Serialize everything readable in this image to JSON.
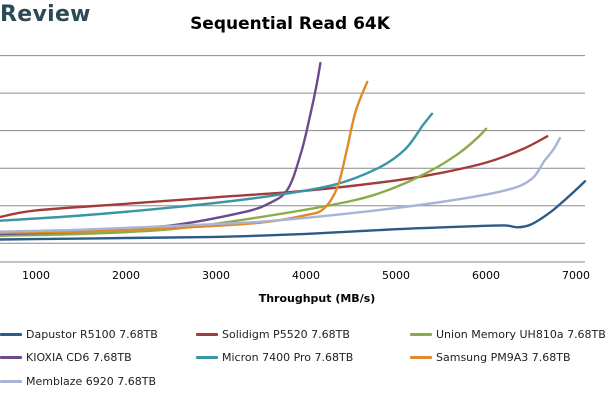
{
  "brand": "Review",
  "chart_data": {
    "type": "line",
    "title": "Sequential Read 64K",
    "xlabel": "Throughput (MB/s)",
    "ylabel": "",
    "xlim": [
      600,
      7100
    ],
    "ylim": [
      -1,
      10.3
    ],
    "x_ticks": [
      1000,
      2000,
      3000,
      4000,
      5000,
      6000,
      7000
    ],
    "y_ticks_hidden": true,
    "grid": "horizontal",
    "legend_position": "bottom",
    "series": [
      {
        "name": "Dapustor R5100 7.68TB",
        "color": "#2e5a88",
        "points": [
          [
            600,
            0.2
          ],
          [
            1000,
            0.22
          ],
          [
            2000,
            0.28
          ],
          [
            3000,
            0.34
          ],
          [
            4000,
            0.5
          ],
          [
            5000,
            0.75
          ],
          [
            5800,
            0.9
          ],
          [
            6200,
            0.95
          ],
          [
            6350,
            0.85
          ],
          [
            6500,
            1.0
          ],
          [
            6700,
            1.6
          ],
          [
            6850,
            2.2
          ],
          [
            7000,
            2.85
          ],
          [
            7100,
            3.3
          ]
        ]
      },
      {
        "name": "Solidigm P5520 7.68TB",
        "color": "#a33b3b",
        "points": [
          [
            600,
            1.4
          ],
          [
            1000,
            1.75
          ],
          [
            2000,
            2.1
          ],
          [
            3000,
            2.45
          ],
          [
            4000,
            2.8
          ],
          [
            5000,
            3.35
          ],
          [
            5500,
            3.75
          ],
          [
            6000,
            4.3
          ],
          [
            6400,
            5.0
          ],
          [
            6680,
            5.7
          ]
        ]
      },
      {
        "name": "Union Memory UH810a 7.68TB",
        "color": "#8aac48",
        "points": [
          [
            600,
            0.4
          ],
          [
            1500,
            0.5
          ],
          [
            2500,
            0.75
          ],
          [
            3500,
            1.4
          ],
          [
            4500,
            2.25
          ],
          [
            5000,
            3.0
          ],
          [
            5400,
            3.9
          ],
          [
            5700,
            4.8
          ],
          [
            5900,
            5.6
          ],
          [
            6000,
            6.1
          ]
        ]
      },
      {
        "name": "KIOXIA CD6 7.68TB",
        "color": "#6b4a8e",
        "points": [
          [
            600,
            0.5
          ],
          [
            1500,
            0.62
          ],
          [
            2500,
            0.95
          ],
          [
            3300,
            1.65
          ],
          [
            3600,
            2.15
          ],
          [
            3800,
            2.9
          ],
          [
            3950,
            4.9
          ],
          [
            4050,
            6.9
          ],
          [
            4120,
            8.5
          ],
          [
            4160,
            9.6
          ]
        ]
      },
      {
        "name": "Micron 7400 Pro 7.68TB",
        "color": "#3a95a6",
        "points": [
          [
            600,
            1.2
          ],
          [
            1500,
            1.48
          ],
          [
            2500,
            1.9
          ],
          [
            3500,
            2.45
          ],
          [
            4300,
            3.1
          ],
          [
            4800,
            4.0
          ],
          [
            5100,
            5.0
          ],
          [
            5300,
            6.3
          ],
          [
            5400,
            6.9
          ]
        ]
      },
      {
        "name": "Samsung PM9A3 7.68TB",
        "color": "#e18a2c",
        "points": [
          [
            600,
            0.55
          ],
          [
            1500,
            0.62
          ],
          [
            2500,
            0.8
          ],
          [
            3500,
            1.1
          ],
          [
            4000,
            1.5
          ],
          [
            4200,
            1.85
          ],
          [
            4350,
            3.0
          ],
          [
            4450,
            4.9
          ],
          [
            4550,
            7.0
          ],
          [
            4680,
            8.6
          ]
        ]
      },
      {
        "name": "Memblaze 6920 7.68TB",
        "color": "#a8b4d6",
        "points": [
          [
            600,
            0.62
          ],
          [
            1500,
            0.72
          ],
          [
            2500,
            0.92
          ],
          [
            3500,
            1.15
          ],
          [
            4500,
            1.6
          ],
          [
            5500,
            2.2
          ],
          [
            6200,
            2.8
          ],
          [
            6500,
            3.4
          ],
          [
            6650,
            4.4
          ],
          [
            6750,
            5.0
          ],
          [
            6820,
            5.6
          ]
        ]
      }
    ]
  }
}
